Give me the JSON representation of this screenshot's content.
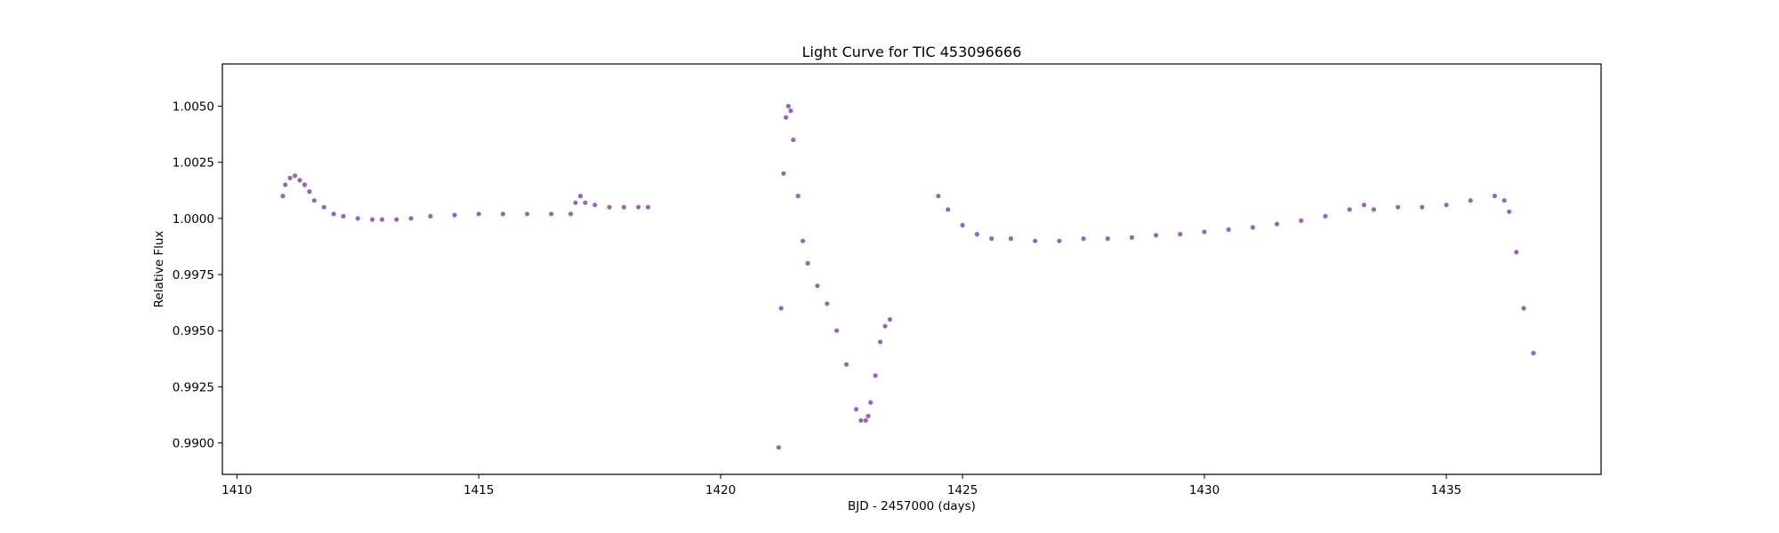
{
  "chart_data": {
    "type": "scatter",
    "title": "Light Curve for TIC 453096666",
    "xlabel": "BJD - 2457000 (days)",
    "ylabel": "Relative Flux",
    "xlim": [
      1409.7,
      1438.2
    ],
    "ylim": [
      0.9886,
      1.00688
    ],
    "xticks": [
      1410,
      1415,
      1420,
      1425,
      1430,
      1435
    ],
    "xtick_labels": [
      "1410",
      "1415",
      "1420",
      "1425",
      "1430",
      "1435"
    ],
    "yticks": [
      0.99,
      0.9925,
      0.995,
      0.9975,
      1.0,
      1.0025,
      1.005
    ],
    "ytick_labels": [
      "0.9900",
      "0.9925",
      "0.9950",
      "0.9975",
      "1.0000",
      "1.0025",
      "1.0050"
    ],
    "grid": false,
    "legend": "none",
    "marker_color": "#9467bd",
    "series": [
      {
        "segment": 1,
        "x": [
          1410.95,
          1411.0,
          1411.1,
          1411.2,
          1411.3,
          1411.4,
          1411.5,
          1411.6,
          1411.8,
          1412.0,
          1412.2,
          1412.5,
          1412.8,
          1413.0,
          1413.3,
          1413.6,
          1414.0,
          1414.5,
          1415.0,
          1415.5,
          1416.0,
          1416.5,
          1416.9,
          1417.0,
          1417.1,
          1417.2,
          1417.4,
          1417.7,
          1418.0,
          1418.3,
          1418.5
        ],
        "y": [
          1.001,
          1.0015,
          1.0018,
          1.0019,
          1.0017,
          1.0015,
          1.0012,
          1.0008,
          1.0005,
          1.0002,
          1.0001,
          1.0,
          0.99995,
          0.99995,
          0.99995,
          1.0,
          1.0001,
          1.00015,
          1.0002,
          1.0002,
          1.0002,
          1.0002,
          1.0002,
          1.0007,
          1.001,
          1.0007,
          1.0006,
          1.0005,
          1.0005,
          1.0005,
          1.0005
        ]
      },
      {
        "segment": 2,
        "x": [
          1421.2,
          1421.25,
          1421.3,
          1421.35,
          1421.4,
          1421.45,
          1421.5,
          1421.6,
          1421.7,
          1421.8,
          1422.0,
          1422.2,
          1422.4,
          1422.6,
          1422.8,
          1422.9,
          1423.0,
          1423.05,
          1423.1,
          1423.2,
          1423.3,
          1423.4,
          1423.5
        ],
        "y": [
          0.9898,
          0.996,
          1.002,
          1.0045,
          1.005,
          1.0048,
          1.0035,
          1.001,
          0.999,
          0.998,
          0.997,
          0.9962,
          0.995,
          0.9935,
          0.9915,
          0.991,
          0.991,
          0.9912,
          0.9918,
          0.993,
          0.9945,
          0.9952,
          0.9955
        ]
      },
      {
        "segment": 3,
        "x": [
          1424.5,
          1424.7,
          1425.0,
          1425.3,
          1425.6,
          1426.0,
          1426.5,
          1427.0,
          1427.5,
          1428.0,
          1428.5,
          1429.0,
          1429.5,
          1430.0,
          1430.5,
          1431.0,
          1431.5,
          1432.0,
          1432.5,
          1433.0,
          1433.3,
          1433.5,
          1434.0,
          1434.5,
          1435.0,
          1435.5,
          1436.0,
          1436.2,
          1436.3,
          1436.45,
          1436.6,
          1436.8
        ],
        "y": [
          1.001,
          1.0004,
          0.9997,
          0.9993,
          0.9991,
          0.9991,
          0.999,
          0.999,
          0.9991,
          0.9991,
          0.99915,
          0.99925,
          0.9993,
          0.9994,
          0.9995,
          0.9996,
          0.99975,
          0.9999,
          1.0001,
          1.0004,
          1.0006,
          1.0004,
          1.0005,
          1.0005,
          1.0006,
          1.0008,
          1.001,
          1.0008,
          1.0003,
          0.9985,
          0.996,
          0.994
        ]
      }
    ]
  }
}
